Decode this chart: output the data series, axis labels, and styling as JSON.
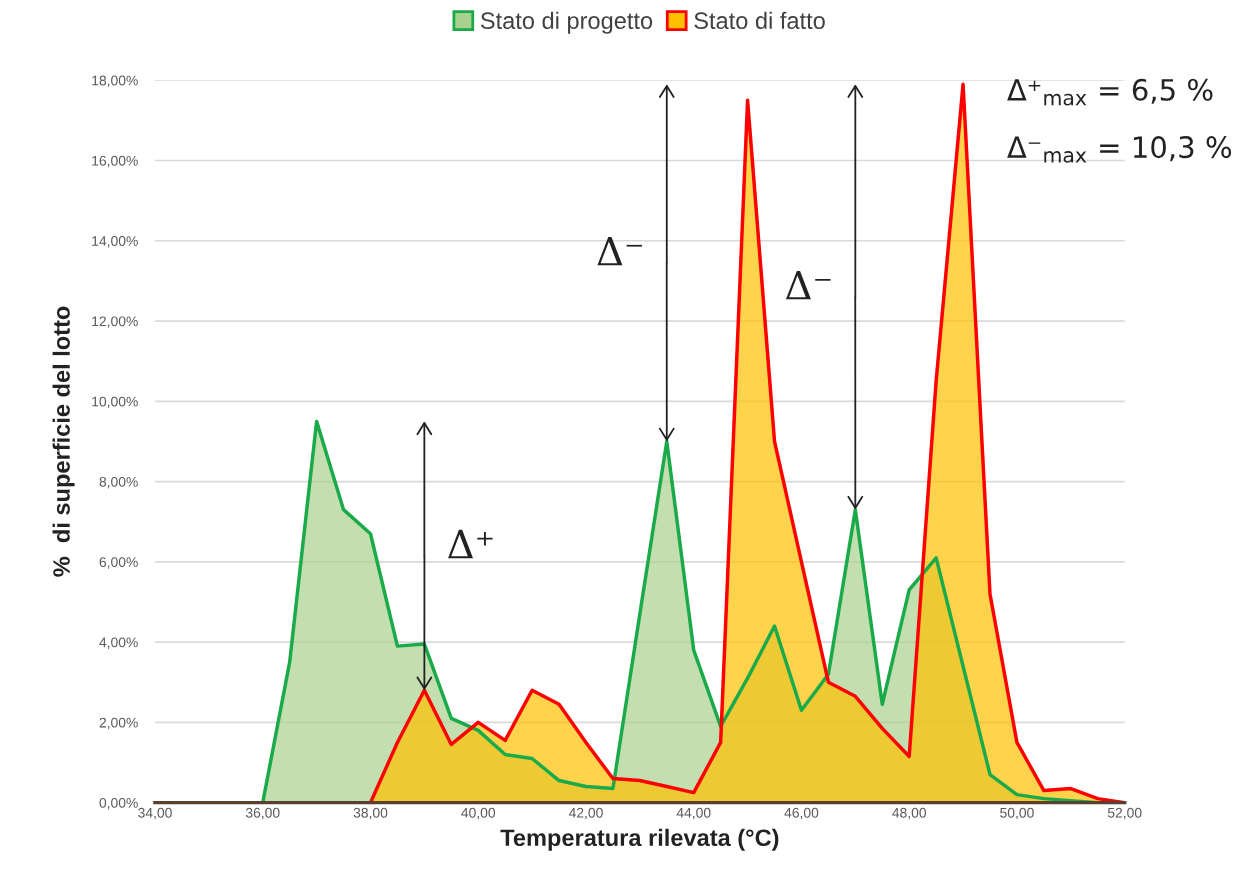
{
  "chart_data": {
    "type": "area",
    "xlabel": "Temperatura rilevata (°C)",
    "ylabel": "%  di superficie del lotto",
    "x": [
      34,
      34.5,
      35,
      35.5,
      36,
      36.5,
      37,
      37.5,
      38,
      38.5,
      39,
      39.5,
      40,
      40.5,
      41,
      41.5,
      42,
      42.5,
      43,
      43.5,
      44,
      44.5,
      45,
      45.5,
      46,
      46.5,
      47,
      47.5,
      48,
      48.5,
      49,
      49.5,
      50,
      50.5,
      51,
      51.5,
      52
    ],
    "series": [
      {
        "name": "Stato di progetto",
        "color": "#1aaa4a",
        "values": [
          0,
          0,
          0,
          0,
          0,
          3.5,
          9.5,
          7.3,
          6.7,
          3.9,
          3.95,
          2.1,
          1.8,
          1.2,
          1.1,
          0.55,
          0.4,
          0.35,
          4.7,
          9.0,
          3.8,
          1.9,
          3.1,
          4.4,
          2.3,
          3.2,
          7.3,
          2.45,
          5.3,
          6.1,
          3.4,
          0.7,
          0.2,
          0.1,
          0.05,
          0,
          0
        ]
      },
      {
        "name": "Stato di fatto",
        "color": "#ff0000",
        "values": [
          0,
          0,
          0,
          0,
          0,
          0,
          0,
          0,
          0,
          1.5,
          2.8,
          1.45,
          2.0,
          1.55,
          2.8,
          2.45,
          1.5,
          0.6,
          0.55,
          0.4,
          0.25,
          1.5,
          17.5,
          9.0,
          6.0,
          3.0,
          2.65,
          1.85,
          1.15,
          10.5,
          17.9,
          5.2,
          1.5,
          0.3,
          0.35,
          0.1,
          0
        ]
      }
    ],
    "xlim": [
      34,
      52
    ],
    "xticks": [
      {
        "value": 34,
        "label": "34,00"
      },
      {
        "value": 36,
        "label": "36,00"
      },
      {
        "value": 38,
        "label": "38,00"
      },
      {
        "value": 40,
        "label": "40,00"
      },
      {
        "value": 42,
        "label": "42,00"
      },
      {
        "value": 44,
        "label": "44,00"
      },
      {
        "value": 46,
        "label": "46,00"
      },
      {
        "value": 48,
        "label": "48,00"
      },
      {
        "value": 50,
        "label": "50,00"
      },
      {
        "value": 52,
        "label": "52,00"
      }
    ],
    "ylim": [
      0,
      18
    ],
    "yticks": [
      {
        "value": 0,
        "label": "0,00%"
      },
      {
        "value": 2,
        "label": "2,00%"
      },
      {
        "value": 4,
        "label": "4,00%"
      },
      {
        "value": 6,
        "label": "6,00%"
      },
      {
        "value": 8,
        "label": "8,00%"
      },
      {
        "value": 10,
        "label": "10,00%"
      },
      {
        "value": 12,
        "label": "12,00%"
      },
      {
        "value": 14,
        "label": "14,00%"
      },
      {
        "value": 16,
        "label": "16,00%"
      },
      {
        "value": 18,
        "label": "18,00%"
      }
    ],
    "grid": "y",
    "legend": "top",
    "annotations": [
      {
        "text": "Δ⁺",
        "x": 39,
        "y": 2.8
      },
      {
        "text": "Δ⁻",
        "x": 43.5,
        "y": 9.0
      },
      {
        "text": "Δ⁻",
        "x": 47,
        "y": 7.3
      },
      "Δ⁺$_{max}$ = 6,5 %",
      "Δ⁻$_{max}$ = 10,3 %"
    ]
  }
}
